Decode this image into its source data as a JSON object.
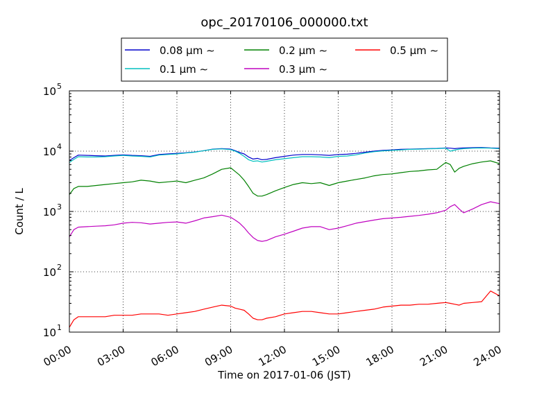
{
  "chart_data": {
    "type": "line",
    "title": "opc_20170106_000000.txt",
    "xlabel": "Time on 2017-01-06 (JST)",
    "ylabel": "Count / L",
    "yscale": "log",
    "ylim": [
      10,
      100000
    ],
    "xlim": [
      0,
      24
    ],
    "grid": true,
    "legend_position": "top-center",
    "x_ticks": [
      {
        "value": 0,
        "label": "00:00"
      },
      {
        "value": 3,
        "label": "03:00"
      },
      {
        "value": 6,
        "label": "06:00"
      },
      {
        "value": 9,
        "label": "09:00"
      },
      {
        "value": 12,
        "label": "12:00"
      },
      {
        "value": 15,
        "label": "15:00"
      },
      {
        "value": 18,
        "label": "18:00"
      },
      {
        "value": 21,
        "label": "21:00"
      },
      {
        "value": 24,
        "label": "24:00"
      }
    ],
    "y_ticks": [
      {
        "value": 10,
        "base": "10",
        "exp": "1"
      },
      {
        "value": 100,
        "base": "10",
        "exp": "2"
      },
      {
        "value": 1000,
        "base": "10",
        "exp": "3"
      },
      {
        "value": 10000,
        "base": "10",
        "exp": "4"
      },
      {
        "value": 100000,
        "base": "10",
        "exp": "5"
      }
    ],
    "x": [
      0,
      0.25,
      0.5,
      1,
      1.5,
      2,
      2.5,
      3,
      3.5,
      4,
      4.5,
      5,
      5.5,
      6,
      6.5,
      7,
      7.5,
      8,
      8.5,
      9,
      9.25,
      9.5,
      9.75,
      10,
      10.25,
      10.5,
      10.75,
      11,
      11.5,
      12,
      12.5,
      13,
      13.5,
      14,
      14.5,
      15,
      15.5,
      16,
      16.5,
      17,
      17.5,
      18,
      18.5,
      19,
      19.5,
      20,
      20.5,
      21,
      21.25,
      21.5,
      21.75,
      22,
      22.5,
      23,
      23.5,
      24
    ],
    "series": [
      {
        "name": "0.08 μm ∼",
        "color": "#0000cc",
        "values": [
          7000,
          7800,
          8600,
          8500,
          8400,
          8300,
          8500,
          8700,
          8500,
          8400,
          8200,
          8800,
          9000,
          9200,
          9400,
          9700,
          10200,
          10800,
          11000,
          10800,
          10200,
          9500,
          9000,
          8000,
          7400,
          7600,
          7200,
          7300,
          7800,
          8200,
          8600,
          8800,
          8800,
          8700,
          8500,
          8800,
          8900,
          9200,
          9600,
          10000,
          10300,
          10500,
          10700,
          10800,
          10900,
          11000,
          11100,
          11300,
          11200,
          11000,
          11200,
          11300,
          11400,
          11500,
          11300,
          11200
        ]
      },
      {
        "name": "0.1 μm ∼",
        "color": "#00bfbf",
        "values": [
          6500,
          7300,
          8100,
          8000,
          8000,
          8100,
          8300,
          8500,
          8300,
          8200,
          8000,
          8600,
          8800,
          9000,
          9300,
          9600,
          10200,
          10700,
          10900,
          10600,
          10000,
          9200,
          8200,
          7200,
          6800,
          6900,
          6600,
          6800,
          7200,
          7500,
          7800,
          8100,
          8100,
          8000,
          7800,
          8200,
          8300,
          8700,
          9300,
          9800,
          10100,
          10300,
          10500,
          10700,
          10800,
          10900,
          11000,
          11200,
          10000,
          10400,
          10800,
          11000,
          11200,
          11300,
          11200,
          11000
        ]
      },
      {
        "name": "0.2 μm ∼",
        "color": "#008000",
        "values": [
          1900,
          2400,
          2600,
          2600,
          2700,
          2800,
          2900,
          3000,
          3100,
          3300,
          3200,
          3000,
          3100,
          3200,
          3000,
          3300,
          3600,
          4200,
          5000,
          5300,
          4600,
          4000,
          3300,
          2600,
          2000,
          1800,
          1800,
          1900,
          2200,
          2500,
          2800,
          3000,
          2900,
          3000,
          2700,
          3000,
          3200,
          3400,
          3600,
          3900,
          4100,
          4200,
          4400,
          4600,
          4700,
          4900,
          5000,
          6500,
          6000,
          4500,
          5200,
          5600,
          6200,
          6600,
          6900,
          6200
        ]
      },
      {
        "name": "0.3 μm ∼",
        "color": "#bf00bf",
        "values": [
          380,
          500,
          550,
          560,
          570,
          580,
          600,
          640,
          660,
          650,
          620,
          640,
          660,
          670,
          640,
          700,
          780,
          820,
          870,
          800,
          720,
          640,
          540,
          440,
          370,
          330,
          320,
          330,
          380,
          420,
          470,
          530,
          560,
          560,
          500,
          530,
          580,
          640,
          680,
          720,
          760,
          780,
          800,
          830,
          860,
          900,
          950,
          1050,
          1200,
          1300,
          1100,
          950,
          1100,
          1300,
          1450,
          1350
        ]
      },
      {
        "name": "0.5 μm ∼",
        "color": "#ff0000",
        "values": [
          12,
          16,
          18,
          18,
          18,
          18,
          19,
          19,
          19,
          20,
          20,
          20,
          19,
          20,
          21,
          22,
          24,
          26,
          28,
          27,
          25,
          24,
          23,
          20,
          17,
          16,
          16,
          17,
          18,
          20,
          21,
          22,
          22,
          21,
          20,
          20,
          21,
          22,
          23,
          24,
          26,
          27,
          28,
          28,
          29,
          29,
          30,
          31,
          30,
          29,
          28,
          30,
          31,
          32,
          48,
          40
        ]
      }
    ]
  }
}
